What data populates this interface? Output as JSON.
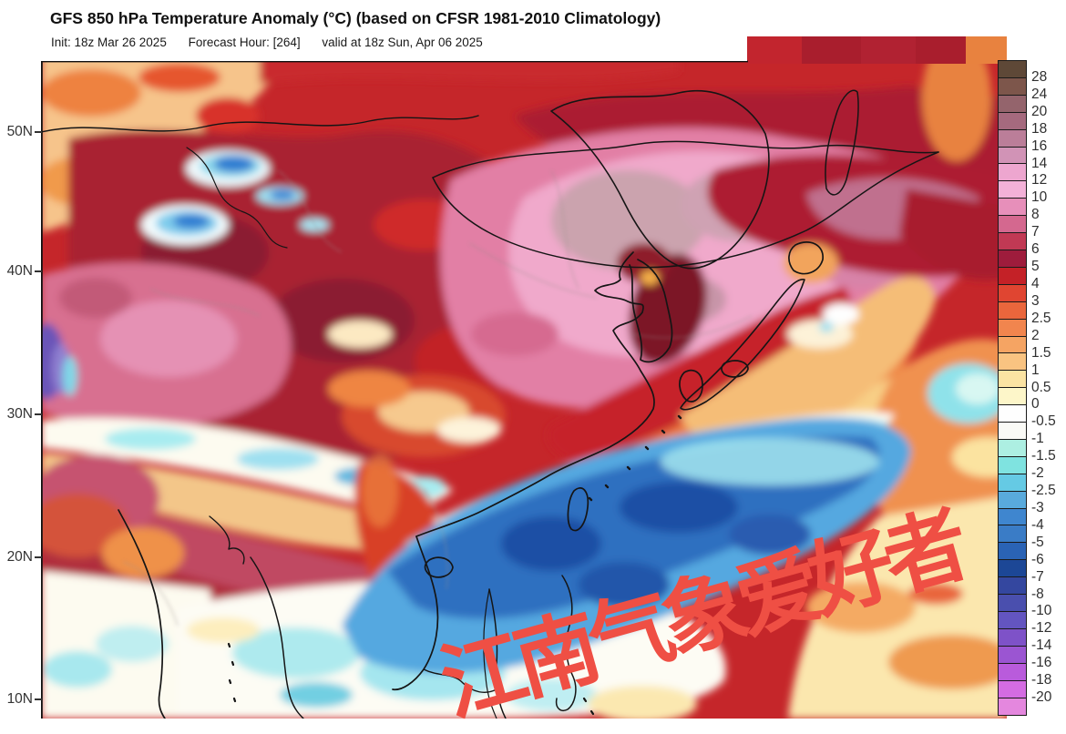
{
  "header": {
    "title": "GFS 850 hPa Temperature Anomaly (°C) (based on CFSR 1981-2010 Climatology)",
    "init": "Init: 18z Mar 26 2025",
    "forecast_hour": "Forecast Hour: [264]",
    "valid": "valid at 18z Sun, Apr 06 2025"
  },
  "map": {
    "latitude_labels": [
      "50N",
      "40N",
      "30N",
      "20N",
      "10N"
    ],
    "watermark_text": "江南气象爱好者",
    "watermark_color": "#ef4f44"
  },
  "colorbar": {
    "tick_labels": [
      "28",
      "24",
      "20",
      "18",
      "16",
      "14",
      "12",
      "10",
      "8",
      "7",
      "6",
      "5",
      "4",
      "3",
      "2.5",
      "2",
      "1.5",
      "1",
      "0.5",
      "0",
      "-0.5",
      "-1",
      "-1.5",
      "-2",
      "-2.5",
      "-3",
      "-4",
      "-5",
      "-6",
      "-7",
      "-8",
      "-10",
      "-12",
      "-14",
      "-16",
      "-18",
      "-20"
    ],
    "cell_colors": [
      "#5e4837",
      "#7d564b",
      "#94646c",
      "#a56a7e",
      "#bb7e99",
      "#d193b6",
      "#eda6cf",
      "#f3b1d8",
      "#e78fba",
      "#d4688f",
      "#c13954",
      "#9e1c3c",
      "#c42127",
      "#e04531",
      "#ea663c",
      "#f1854e",
      "#f5a463",
      "#f9c381",
      "#fbe3a3",
      "#fdf6c9",
      "#fefefe",
      "#fafaf6",
      "#adefe2",
      "#7fe3e0",
      "#65cae4",
      "#59aadc",
      "#3f86cf",
      "#3a7cc6",
      "#2a63b5",
      "#1c4796",
      "#34479f",
      "#4a4fae",
      "#6355c0",
      "#7e52c8",
      "#9b55d2",
      "#b95bdc",
      "#d46ce2",
      "#e487de"
    ]
  }
}
